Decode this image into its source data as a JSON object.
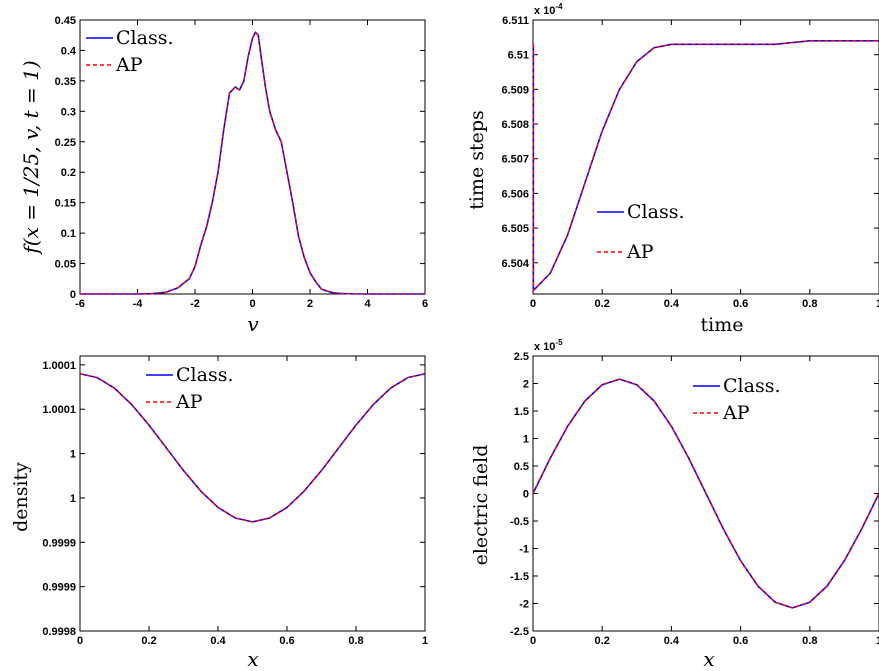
{
  "chart_data": [
    {
      "type": "line",
      "xlabel": "v",
      "ylabel": "f(x = 1/25, v, t = 1)",
      "xlim": [
        -6,
        6
      ],
      "ylim": [
        0,
        0.45
      ],
      "xticks": [
        "-6",
        "-4",
        "-2",
        "0",
        "2",
        "4",
        "6"
      ],
      "yticks": [
        "0",
        "0.05",
        "0.1",
        "0.15",
        "0.2",
        "0.25",
        "0.3",
        "0.35",
        "0.4",
        "0.45"
      ],
      "legend_position": "top-left",
      "series": [
        {
          "name": "Class.",
          "color": "#0000ff",
          "style": "solid",
          "x": [
            -6,
            -4,
            -3.5,
            -3,
            -2.6,
            -2.2,
            -2,
            -1.8,
            -1.6,
            -1.4,
            -1.2,
            -1.0,
            -0.8,
            -0.6,
            -0.45,
            -0.3,
            -0.15,
            0,
            0.1,
            0.2,
            0.3,
            0.45,
            0.6,
            0.8,
            1.0,
            1.2,
            1.4,
            1.6,
            1.8,
            2.0,
            2.2,
            2.4,
            2.7,
            3.0,
            3.5,
            4,
            6
          ],
          "y": [
            0,
            0,
            0.0005,
            0.003,
            0.01,
            0.025,
            0.045,
            0.08,
            0.11,
            0.15,
            0.2,
            0.27,
            0.33,
            0.34,
            0.335,
            0.35,
            0.39,
            0.42,
            0.43,
            0.425,
            0.39,
            0.34,
            0.3,
            0.27,
            0.25,
            0.2,
            0.15,
            0.095,
            0.06,
            0.035,
            0.02,
            0.008,
            0.003,
            0.001,
            0.0002,
            0,
            0
          ]
        },
        {
          "name": "AP",
          "color": "#ff0000",
          "style": "dashed",
          "x": [
            -6,
            -4,
            -3.5,
            -3,
            -2.6,
            -2.2,
            -2,
            -1.8,
            -1.6,
            -1.4,
            -1.2,
            -1.0,
            -0.8,
            -0.6,
            -0.45,
            -0.3,
            -0.15,
            0,
            0.1,
            0.2,
            0.3,
            0.45,
            0.6,
            0.8,
            1.0,
            1.2,
            1.4,
            1.6,
            1.8,
            2.0,
            2.2,
            2.4,
            2.7,
            3.0,
            3.5,
            4,
            6
          ],
          "y": [
            0,
            0,
            0.0005,
            0.003,
            0.01,
            0.025,
            0.045,
            0.08,
            0.11,
            0.15,
            0.2,
            0.27,
            0.33,
            0.34,
            0.335,
            0.35,
            0.39,
            0.42,
            0.43,
            0.425,
            0.39,
            0.34,
            0.3,
            0.27,
            0.25,
            0.2,
            0.15,
            0.095,
            0.06,
            0.035,
            0.02,
            0.008,
            0.003,
            0.001,
            0.0002,
            0,
            0
          ]
        }
      ]
    },
    {
      "type": "line",
      "xlabel": "time",
      "ylabel": "time steps",
      "exponent_label": "x 10",
      "exponent_power": "-4",
      "xlim": [
        0,
        1
      ],
      "ylim": [
        6.5031,
        6.511
      ],
      "xticks": [
        "0",
        "0.2",
        "0.4",
        "0.6",
        "0.8",
        "1"
      ],
      "yticks": [
        "6.504",
        "6.505",
        "6.506",
        "6.507",
        "6.508",
        "6.509",
        "6.51",
        "6.511"
      ],
      "ytick_values": [
        6.504,
        6.505,
        6.506,
        6.507,
        6.508,
        6.509,
        6.51,
        6.511
      ],
      "legend_position": "center-right",
      "series": [
        {
          "name": "Class.",
          "color": "#0000ff",
          "style": "solid",
          "x": [
            0,
            0,
            0.001,
            0.001,
            0.05,
            0.1,
            0.15,
            0.2,
            0.25,
            0.3,
            0.35,
            0.4,
            0.45,
            0.5,
            0.6,
            0.7,
            0.8,
            0.9,
            1.0
          ],
          "y": [
            6.5103,
            6.5103,
            6.5103,
            6.5032,
            6.5037,
            6.5048,
            6.5063,
            6.5078,
            6.509,
            6.5098,
            6.5102,
            6.5103,
            6.5103,
            6.5103,
            6.5103,
            6.5103,
            6.5104,
            6.5104,
            6.5104
          ]
        },
        {
          "name": "AP",
          "color": "#ff0000",
          "style": "dashed",
          "x": [
            0,
            0,
            0.001,
            0.001,
            0.05,
            0.1,
            0.15,
            0.2,
            0.25,
            0.3,
            0.35,
            0.4,
            0.45,
            0.5,
            0.6,
            0.7,
            0.8,
            0.9,
            1.0
          ],
          "y": [
            6.5103,
            6.5103,
            6.5103,
            6.5032,
            6.5037,
            6.5048,
            6.5063,
            6.5078,
            6.509,
            6.5098,
            6.5102,
            6.5103,
            6.5103,
            6.5103,
            6.5103,
            6.5103,
            6.5104,
            6.5104,
            6.5104
          ]
        }
      ]
    },
    {
      "type": "line",
      "xlabel": "x",
      "ylabel": "density",
      "xlim": [
        0,
        1
      ],
      "ylim": [
        0.9998,
        1.00011
      ],
      "xticks": [
        "0",
        "0.2",
        "0.4",
        "0.6",
        "0.8",
        "1"
      ],
      "yticks": [
        "0.9998",
        "0.9999",
        "0.9999",
        "1",
        "1",
        "1.0001",
        "1.0001"
      ],
      "ytick_values": [
        0.9998,
        0.99985,
        0.9999,
        0.99995,
        1.0,
        1.00005,
        1.0001
      ],
      "legend_position": "top-center",
      "series": [
        {
          "name": "Class.",
          "color": "#0000ff",
          "style": "solid",
          "x": [
            0,
            0.05,
            0.1,
            0.15,
            0.2,
            0.25,
            0.3,
            0.35,
            0.4,
            0.45,
            0.5,
            0.55,
            0.6,
            0.65,
            0.7,
            0.75,
            0.8,
            0.85,
            0.9,
            0.95,
            1.0
          ],
          "y": [
            1.00009,
            1.0000856,
            1.0000737,
            1.0000552,
            1.0000321,
            1.0000065,
            0.9999809,
            0.9999578,
            0.9999393,
            0.9999274,
            0.999923,
            0.9999274,
            0.9999393,
            0.9999578,
            0.9999809,
            1.0000065,
            1.0000321,
            1.0000552,
            1.0000737,
            1.0000856,
            1.00009
          ]
        },
        {
          "name": "AP",
          "color": "#ff0000",
          "style": "dashed",
          "x": [
            0,
            0.05,
            0.1,
            0.15,
            0.2,
            0.25,
            0.3,
            0.35,
            0.4,
            0.45,
            0.5,
            0.55,
            0.6,
            0.65,
            0.7,
            0.75,
            0.8,
            0.85,
            0.9,
            0.95,
            1.0
          ],
          "y": [
            1.00009,
            1.0000856,
            1.0000737,
            1.0000552,
            1.0000321,
            1.0000065,
            0.9999809,
            0.9999578,
            0.9999393,
            0.9999274,
            0.999923,
            0.9999274,
            0.9999393,
            0.9999578,
            0.9999809,
            1.0000065,
            1.0000321,
            1.0000552,
            1.0000737,
            1.0000856,
            1.00009
          ]
        }
      ]
    },
    {
      "type": "line",
      "xlabel": "x",
      "ylabel": "electric field",
      "exponent_label": "x 10",
      "exponent_power": "-5",
      "xlim": [
        0,
        1
      ],
      "ylim": [
        -2.5,
        2.5
      ],
      "xticks": [
        "0",
        "0.2",
        "0.4",
        "0.6",
        "0.8",
        "1"
      ],
      "yticks": [
        "-2.5",
        "-2",
        "-1.5",
        "-1",
        "-0.5",
        "0",
        "0.5",
        "1",
        "1.5",
        "2",
        "2.5"
      ],
      "legend_position": "top-right",
      "series": [
        {
          "name": "Class.",
          "color": "#0000ff",
          "style": "solid",
          "x": [
            0,
            0.05,
            0.1,
            0.15,
            0.2,
            0.25,
            0.3,
            0.35,
            0.4,
            0.45,
            0.5,
            0.55,
            0.6,
            0.65,
            0.7,
            0.75,
            0.8,
            0.85,
            0.9,
            0.95,
            1.0
          ],
          "y": [
            0,
            0.643,
            1.222,
            1.682,
            1.977,
            2.08,
            1.977,
            1.682,
            1.222,
            0.643,
            0,
            -0.643,
            -1.222,
            -1.682,
            -1.977,
            -2.08,
            -1.977,
            -1.682,
            -1.222,
            -0.643,
            0
          ]
        },
        {
          "name": "AP",
          "color": "#ff0000",
          "style": "dashed",
          "x": [
            0,
            0.05,
            0.1,
            0.15,
            0.2,
            0.25,
            0.3,
            0.35,
            0.4,
            0.45,
            0.5,
            0.55,
            0.6,
            0.65,
            0.7,
            0.75,
            0.8,
            0.85,
            0.9,
            0.95,
            1.0
          ],
          "y": [
            0,
            0.643,
            1.222,
            1.682,
            1.977,
            2.08,
            1.977,
            1.682,
            1.222,
            0.643,
            0,
            -0.643,
            -1.222,
            -1.682,
            -1.977,
            -2.08,
            -1.977,
            -1.682,
            -1.222,
            -0.643,
            0
          ]
        }
      ]
    }
  ]
}
